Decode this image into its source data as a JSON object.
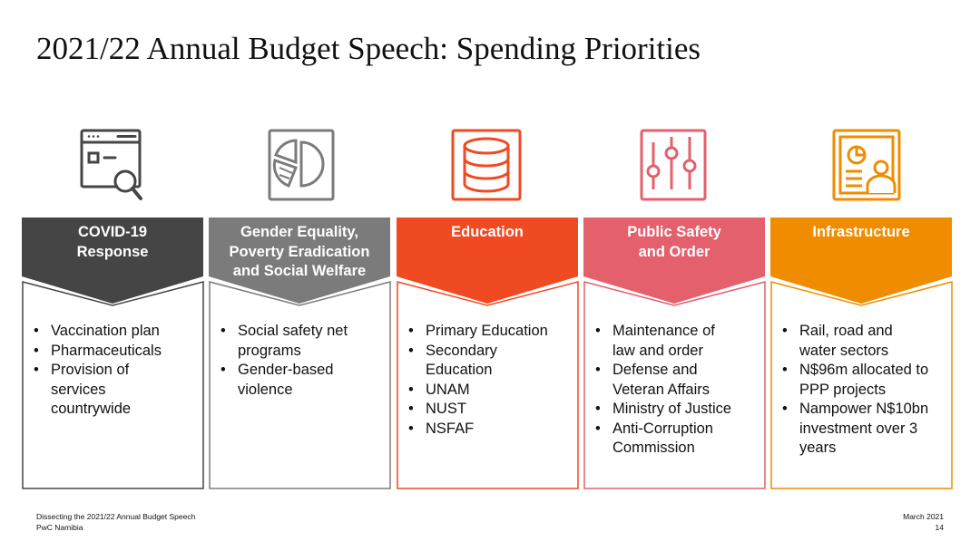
{
  "title": "2021/22 Annual Budget Speech: Spending Priorities",
  "columns": [
    {
      "key": "covid",
      "header": "COVID-19\nResponse",
      "color": "#454545",
      "icon": "browser-search-icon",
      "bullets": [
        "Vaccination plan",
        "Pharmaceuticals",
        "Provision of\nservices\ncountrywide"
      ]
    },
    {
      "key": "gender",
      "header": "Gender Equality,\nPoverty Eradication\nand Social Welfare",
      "color": "#7b7b7b",
      "icon": "pie-chart-icon",
      "bullets": [
        "Social safety net\nprograms",
        "Gender-based\nviolence"
      ]
    },
    {
      "key": "education",
      "header": "Education",
      "color": "#f04a23",
      "icon": "database-icon",
      "bullets": [
        "Primary Education",
        "Secondary\nEducation",
        "UNAM",
        "NUST",
        "NSFAF"
      ]
    },
    {
      "key": "safety",
      "header": "Public Safety\nand Order",
      "color": "#e4606d",
      "icon": "sliders-icon",
      "bullets": [
        "Maintenance of\nlaw and order",
        "Defense and\nVeteran Affairs",
        "Ministry of Justice",
        "Anti-Corruption\nCommission"
      ]
    },
    {
      "key": "infra",
      "header": "Infrastructure",
      "color": "#f08c00",
      "icon": "presentation-icon",
      "bullets": [
        "Rail, road and\nwater sectors",
        "N$96m allocated to\nPPP projects",
        "Nampower N$10bn\ninvestment over 3\nyears"
      ]
    }
  ],
  "footer": {
    "left_line1": "Dissecting the 2021/22 Annual Budget Speech",
    "left_line2": "PwC Namibia",
    "right_line1": "March 2021",
    "right_line2": "14"
  }
}
